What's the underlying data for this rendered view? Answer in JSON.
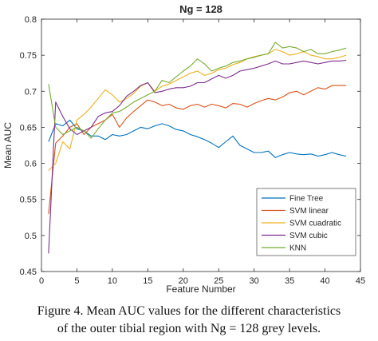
{
  "chart_data": {
    "type": "line",
    "title": "Ng = 128",
    "xlabel": "Feature Number",
    "ylabel": "Mean AUC",
    "xlim": [
      0,
      45
    ],
    "ylim": [
      0.45,
      0.8
    ],
    "xticks": [
      0,
      5,
      10,
      15,
      20,
      25,
      30,
      35,
      40,
      45
    ],
    "yticks": [
      0.45,
      0.5,
      0.55,
      0.6,
      0.65,
      0.7,
      0.75,
      0.8
    ],
    "grid": false,
    "legend_position": "bottom-right",
    "x": [
      1,
      2,
      3,
      4,
      5,
      6,
      7,
      8,
      9,
      10,
      11,
      12,
      13,
      14,
      15,
      16,
      17,
      18,
      19,
      20,
      21,
      22,
      23,
      24,
      25,
      26,
      27,
      28,
      29,
      30,
      31,
      32,
      33,
      34,
      35,
      36,
      37,
      38,
      39,
      40,
      41,
      42,
      43
    ],
    "series": [
      {
        "name": "Fine Tree",
        "color": "#0072BD",
        "values": [
          0.63,
          0.655,
          0.652,
          0.66,
          0.648,
          0.645,
          0.638,
          0.638,
          0.633,
          0.64,
          0.638,
          0.64,
          0.645,
          0.65,
          0.648,
          0.652,
          0.655,
          0.652,
          0.647,
          0.645,
          0.64,
          0.637,
          0.633,
          0.628,
          0.622,
          0.63,
          0.638,
          0.625,
          0.62,
          0.615,
          0.615,
          0.617,
          0.608,
          0.612,
          0.615,
          0.613,
          0.612,
          0.613,
          0.61,
          0.612,
          0.615,
          0.612,
          0.61
        ]
      },
      {
        "name": "SVM linear",
        "color": "#D95319",
        "values": [
          0.53,
          0.628,
          0.638,
          0.65,
          0.655,
          0.64,
          0.65,
          0.655,
          0.66,
          0.668,
          0.65,
          0.663,
          0.672,
          0.68,
          0.688,
          0.685,
          0.68,
          0.682,
          0.677,
          0.675,
          0.68,
          0.682,
          0.678,
          0.682,
          0.68,
          0.677,
          0.683,
          0.682,
          0.678,
          0.683,
          0.687,
          0.69,
          0.688,
          0.692,
          0.698,
          0.7,
          0.695,
          0.7,
          0.705,
          0.703,
          0.708,
          0.708,
          0.708
        ]
      },
      {
        "name": "SVM cuadratic",
        "color": "#EDB120",
        "values": [
          0.59,
          0.6,
          0.63,
          0.62,
          0.66,
          0.668,
          0.678,
          0.69,
          0.702,
          0.695,
          0.685,
          0.69,
          0.697,
          0.707,
          0.712,
          0.7,
          0.707,
          0.71,
          0.715,
          0.72,
          0.725,
          0.728,
          0.722,
          0.725,
          0.73,
          0.732,
          0.737,
          0.74,
          0.745,
          0.748,
          0.75,
          0.752,
          0.758,
          0.755,
          0.75,
          0.752,
          0.755,
          0.75,
          0.748,
          0.745,
          0.745,
          0.747,
          0.75
        ]
      },
      {
        "name": "SVM cubic",
        "color": "#7E2F8E",
        "values": [
          0.475,
          0.685,
          0.665,
          0.648,
          0.64,
          0.645,
          0.65,
          0.665,
          0.67,
          0.672,
          0.68,
          0.693,
          0.7,
          0.708,
          0.712,
          0.698,
          0.7,
          0.703,
          0.705,
          0.705,
          0.707,
          0.712,
          0.712,
          0.717,
          0.722,
          0.718,
          0.722,
          0.728,
          0.73,
          0.732,
          0.735,
          0.738,
          0.742,
          0.738,
          0.738,
          0.74,
          0.742,
          0.74,
          0.738,
          0.74,
          0.742,
          0.742,
          0.743
        ]
      },
      {
        "name": "KNN",
        "color": "#77AC30",
        "values": [
          0.71,
          0.65,
          0.64,
          0.645,
          0.65,
          0.645,
          0.635,
          0.648,
          0.66,
          0.67,
          0.672,
          0.678,
          0.685,
          0.69,
          0.695,
          0.7,
          0.715,
          0.712,
          0.72,
          0.728,
          0.735,
          0.745,
          0.738,
          0.728,
          0.732,
          0.735,
          0.74,
          0.742,
          0.745,
          0.747,
          0.75,
          0.752,
          0.768,
          0.76,
          0.762,
          0.76,
          0.755,
          0.758,
          0.752,
          0.752,
          0.755,
          0.757,
          0.76
        ]
      }
    ]
  },
  "caption": {
    "line1": "Figure 4. Mean AUC values for the different characteristics",
    "line2": "of the outer tibial region with Ng = 128 grey levels."
  }
}
